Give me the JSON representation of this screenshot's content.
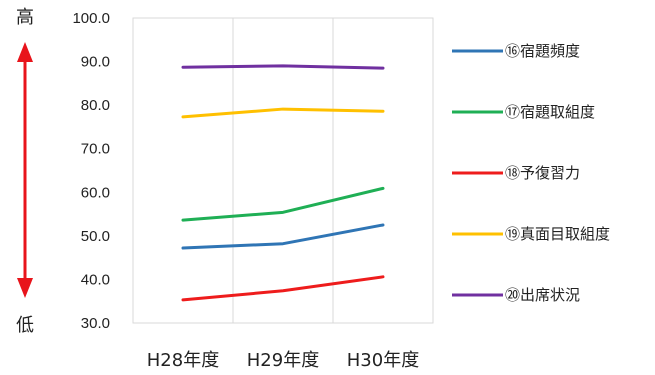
{
  "chart_data": {
    "type": "line",
    "categories": [
      "H28年度",
      "H29年度",
      "H30年度"
    ],
    "ylim": [
      30,
      100
    ],
    "yticks": [
      "100.0",
      "90.0",
      "80.0",
      "70.0",
      "60.0",
      "50.0",
      "40.0",
      "30.0"
    ],
    "grid": "vertical only",
    "legend_position": "right",
    "series": [
      {
        "name": "⑯宿題頻度",
        "color": "#2F75B5",
        "values": [
          47.2,
          48.2,
          52.5
        ]
      },
      {
        "name": "⑰宿題取組度",
        "color": "#1FAF55",
        "values": [
          53.6,
          55.4,
          60.9
        ]
      },
      {
        "name": "⑱予復習力",
        "color": "#EE1C1C",
        "values": [
          35.3,
          37.4,
          40.6
        ]
      },
      {
        "name": "⑲真面目取組度",
        "color": "#FFC000",
        "values": [
          77.3,
          79.1,
          78.6
        ]
      },
      {
        "name": "⑳出席状況",
        "color": "#7030A0",
        "values": [
          88.7,
          89.0,
          88.5
        ]
      }
    ],
    "annotations": {
      "high_label": "高",
      "low_label": "低",
      "arrow_color": "#E8141B"
    }
  }
}
